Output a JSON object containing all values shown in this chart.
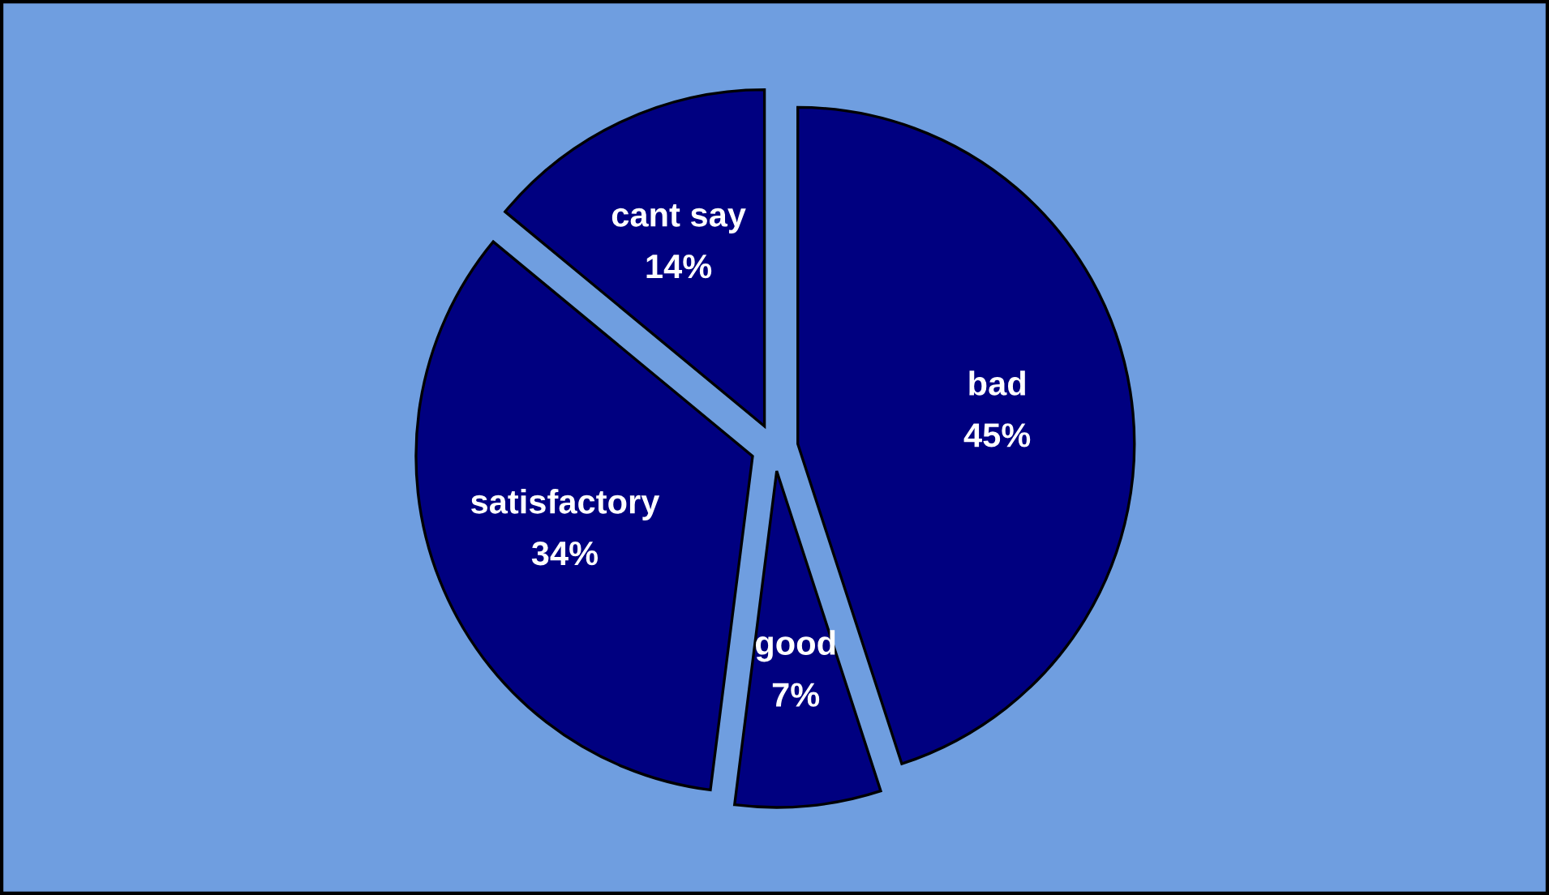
{
  "chart_data": {
    "type": "pie",
    "categories": [
      "bad",
      "good",
      "satisfactory",
      "cant say"
    ],
    "values": [
      45,
      7,
      34,
      14
    ],
    "colors": [
      "#000080",
      "#000080",
      "#000080",
      "#000080"
    ],
    "value_labels": [
      "45%",
      "7%",
      "34%",
      "14%"
    ],
    "legend": false
  }
}
